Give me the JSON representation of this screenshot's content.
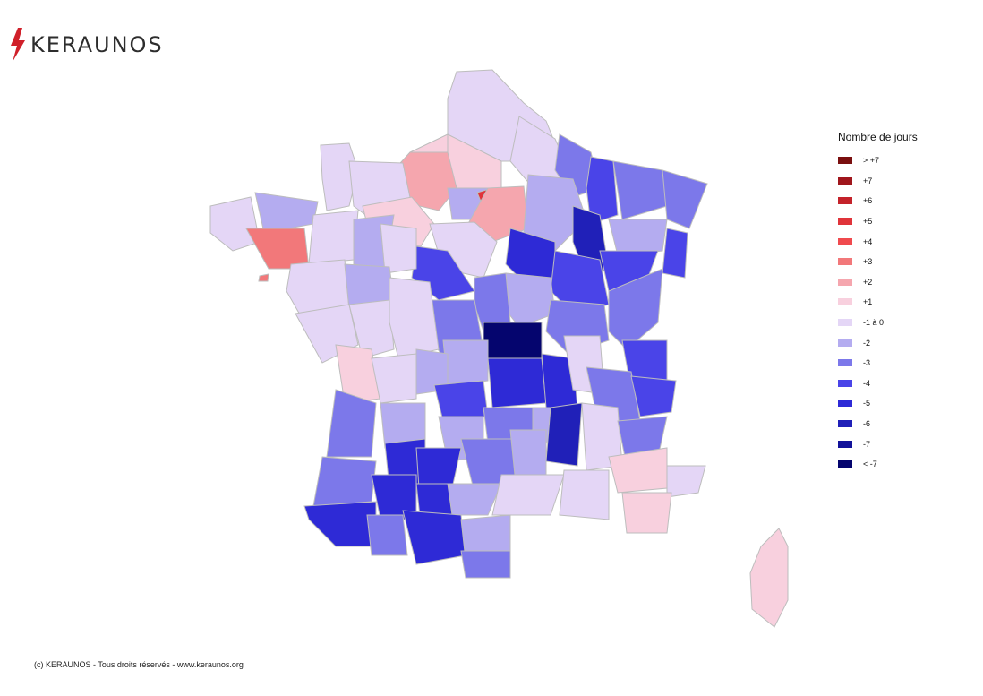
{
  "brand": {
    "name": "KERAUNOS",
    "icon": "lightning-bolt-icon",
    "accent_color": "#d0202a"
  },
  "legend": {
    "title": "Nombre de jours",
    "items": [
      {
        "label": "> +7",
        "color": "#7a0f0f"
      },
      {
        "label": "+7",
        "color": "#a0161c"
      },
      {
        "label": "+6",
        "color": "#c4222a"
      },
      {
        "label": "+5",
        "color": "#e0343a"
      },
      {
        "label": "+4",
        "color": "#f04a4e"
      },
      {
        "label": "+3",
        "color": "#f2787a"
      },
      {
        "label": "+2",
        "color": "#f5a6ae"
      },
      {
        "label": "+1",
        "color": "#f8d0de"
      },
      {
        "label": "-1 à 0",
        "color": "#e4d6f6"
      },
      {
        "label": "-2",
        "color": "#b4acf0"
      },
      {
        "label": "-3",
        "color": "#7c78ea"
      },
      {
        "label": "-4",
        "color": "#4a44e8"
      },
      {
        "label": "-5",
        "color": "#2e2ad6"
      },
      {
        "label": "-6",
        "color": "#2020b8"
      },
      {
        "label": "-7",
        "color": "#12129a"
      },
      {
        "label": "< -7",
        "color": "#05056e"
      }
    ]
  },
  "footer": {
    "text": "(c) KERAUNOS - Tous droits réservés - www.keraunos.org"
  }
}
